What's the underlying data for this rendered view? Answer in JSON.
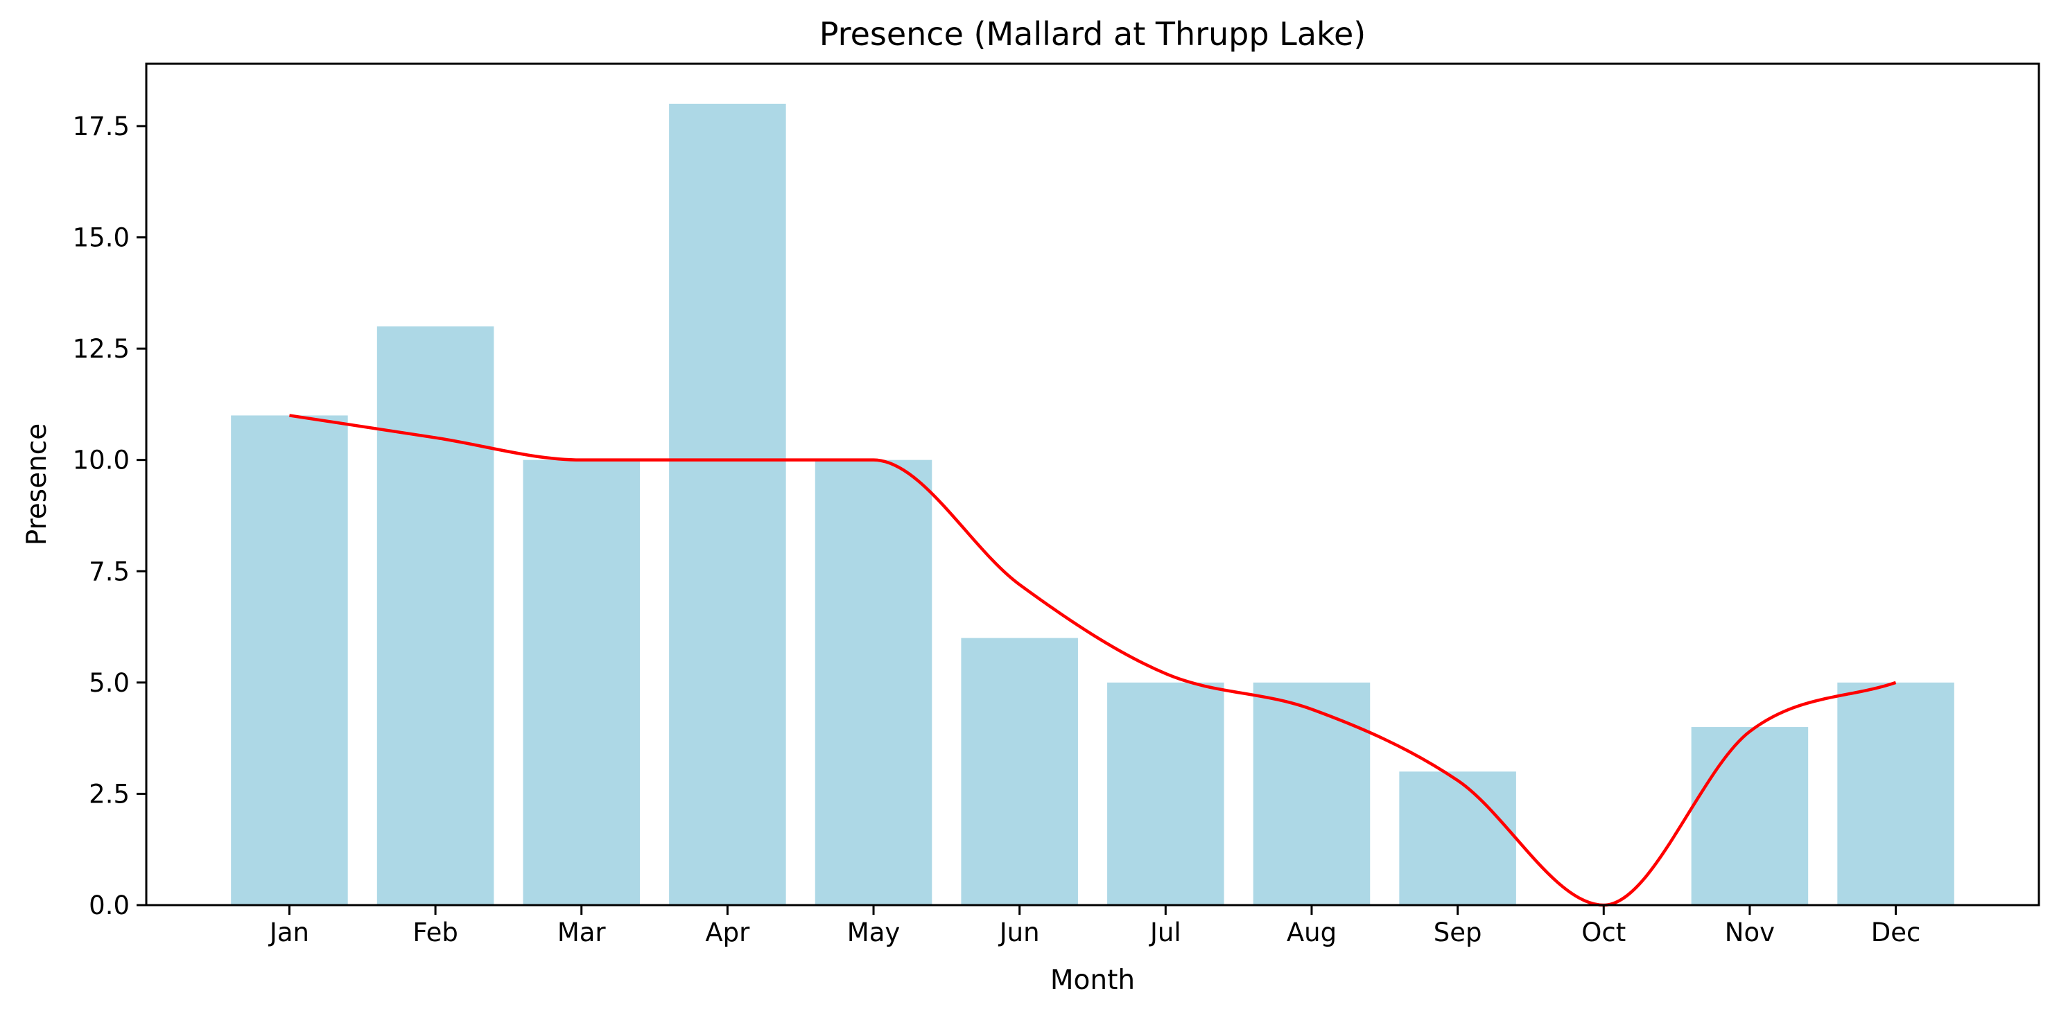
{
  "colors": {
    "bar": "#add8e6",
    "trend_line": "#ff0000",
    "axis": "#000000",
    "background": "#ffffff"
  },
  "chart_data": {
    "type": "bar",
    "title": "Presence (Mallard at Thrupp Lake)",
    "xlabel": "Month",
    "ylabel": "Presence",
    "categories": [
      "Jan",
      "Feb",
      "Mar",
      "Apr",
      "May",
      "Jun",
      "Jul",
      "Aug",
      "Sep",
      "Oct",
      "Nov",
      "Dec"
    ],
    "series": [
      {
        "type": "bar",
        "values": [
          11,
          13,
          10,
          18,
          10,
          6,
          5,
          5,
          3,
          0,
          4,
          5
        ]
      },
      {
        "type": "line",
        "values": [
          11,
          10.5,
          10,
          10,
          10,
          7.2,
          5.2,
          4.4,
          2.8,
          0,
          3.9,
          5
        ]
      }
    ],
    "ylim": [
      0,
      18.9
    ],
    "yticks": [
      0.0,
      2.5,
      5.0,
      7.5,
      10.0,
      12.5,
      15.0,
      17.5
    ],
    "ytick_labels": [
      "0.0",
      "2.5",
      "5.0",
      "7.5",
      "10.0",
      "12.5",
      "15.0",
      "17.5"
    ],
    "grid": false,
    "legend": false
  }
}
